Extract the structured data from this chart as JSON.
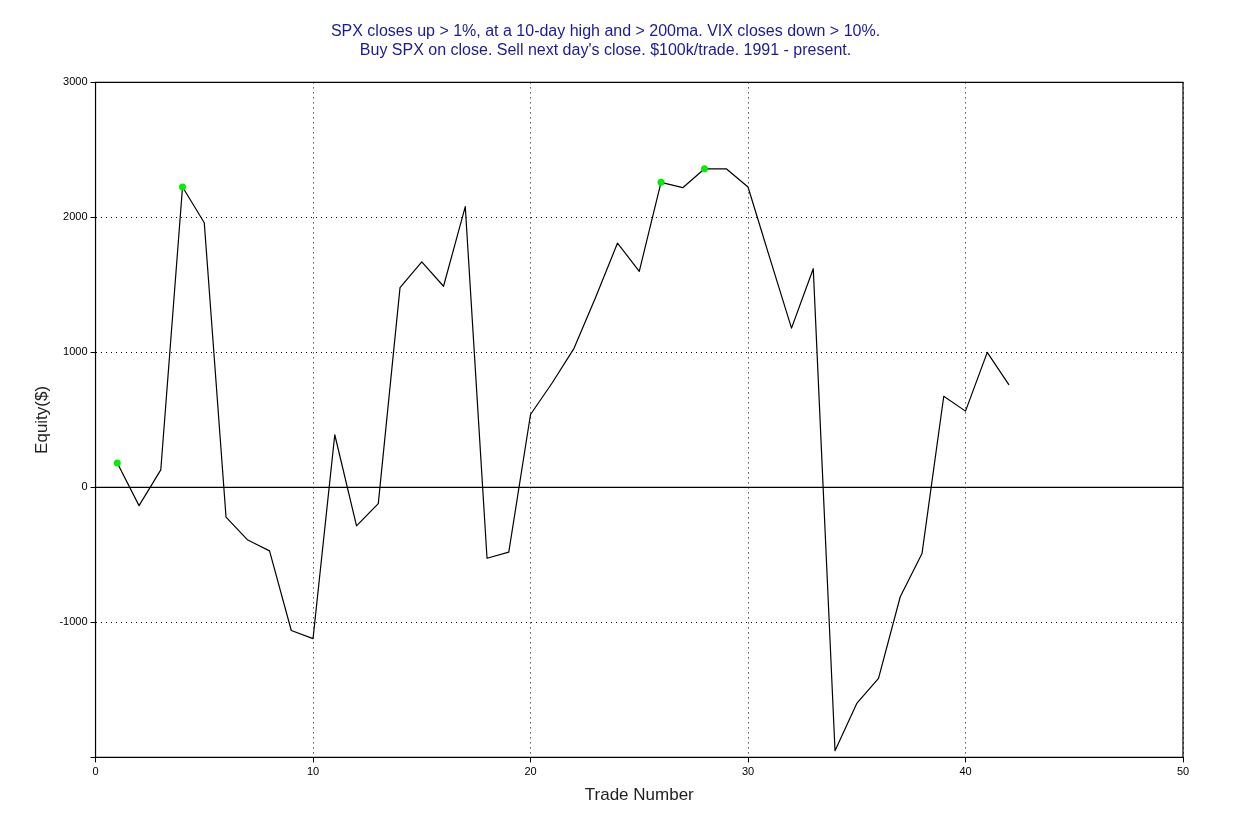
{
  "chart_data": {
    "type": "line",
    "title": [
      "SPX closes up > 1%, at a 10-day high and > 200ma. VIX closes down > 10%.",
      "Buy SPX on close. Sell next day's close. $100k/trade. 1991 - present."
    ],
    "xlabel": "Trade Number",
    "ylabel": "Equity($)",
    "x": [
      1,
      2,
      3,
      4,
      5,
      6,
      7,
      8,
      9,
      10,
      11,
      12,
      13,
      14,
      15,
      16,
      17,
      18,
      19,
      20,
      21,
      22,
      23,
      24,
      25,
      26,
      27,
      28,
      29,
      30,
      31,
      32,
      33,
      34,
      35,
      36,
      37,
      38,
      39,
      40,
      41,
      42
    ],
    "series": [
      {
        "color": "#000000",
        "marker": "none",
        "values": [
          180,
          -135,
          130,
          2225,
          1960,
          -220,
          -390,
          -470,
          -1060,
          -1120,
          390,
          -285,
          -120,
          1480,
          1670,
          1490,
          2080,
          -525,
          -480,
          540,
          775,
          1030,
          1410,
          1810,
          1600,
          2260,
          2220,
          2360,
          2360,
          2225,
          1700,
          1180,
          1620,
          -1950,
          -1600,
          -1415,
          -810,
          -490,
          675,
          565,
          1000,
          760
        ]
      },
      {
        "type": "scatter",
        "color": "#00ee00",
        "marker": "circle",
        "x": [
          1,
          4,
          26,
          28
        ],
        "values": [
          180,
          2225,
          2260,
          2360
        ]
      }
    ],
    "xlim": [
      0,
      50
    ],
    "xticks": [
      0,
      10,
      20,
      30,
      40,
      50
    ],
    "ylim": [
      -2000,
      3000
    ],
    "yticks": [
      {
        "value": -2000,
        "label": null
      },
      -1000,
      0,
      1000,
      2000,
      3000
    ],
    "grid": true,
    "line_style": "solid",
    "ref_lines": [
      {
        "axis": "y",
        "value": 0,
        "color": "#000000",
        "line_style": "solid"
      }
    ]
  }
}
